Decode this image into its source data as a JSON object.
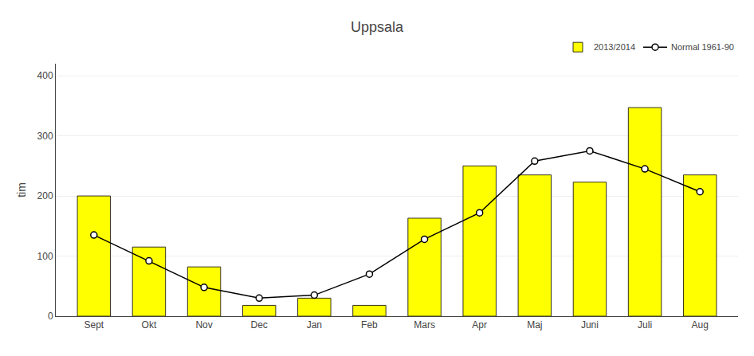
{
  "chart_data": {
    "type": "bar",
    "title": "Uppsala",
    "ylabel": "tim",
    "categories": [
      "Sept",
      "Okt",
      "Nov",
      "Dec",
      "Jan",
      "Feb",
      "Mars",
      "Apr",
      "Maj",
      "Juni",
      "Juli",
      "Aug"
    ],
    "series": [
      {
        "name": "2013/2014",
        "type": "bar",
        "color": "#FFFF00",
        "values": [
          200,
          115,
          82,
          18,
          30,
          18,
          163,
          250,
          235,
          223,
          347,
          235
        ]
      },
      {
        "name": "Normal 1961-90",
        "type": "line",
        "color": "#000000",
        "marker": "circle",
        "values": [
          135,
          92,
          48,
          30,
          35,
          70,
          128,
          172,
          258,
          275,
          245,
          207
        ]
      }
    ],
    "ylim": [
      0,
      420
    ],
    "yticks": [
      0,
      100,
      200,
      300,
      400
    ],
    "grid": true,
    "legend": "upper right"
  }
}
